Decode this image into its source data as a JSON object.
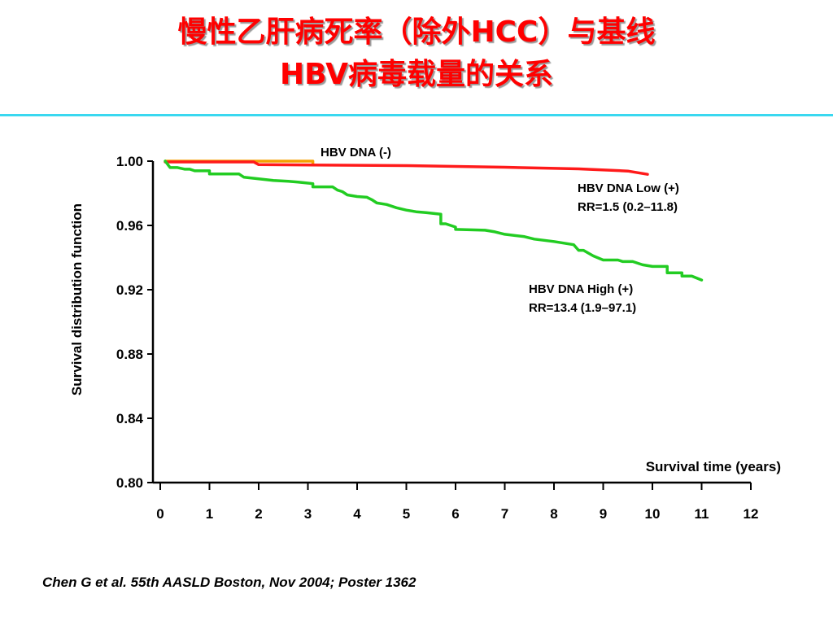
{
  "slide": {
    "title_line1": "慢性乙肝病死率（除外HCC）与基线",
    "title_line2": "HBV病毒载量的关系",
    "citation": "Chen G et al. 55th AASLD Boston, Nov 2004; Poster 1362",
    "accent_color": "#3ad8f0"
  },
  "chart_data": {
    "type": "line",
    "title": "",
    "xlabel": "Survival time (years)",
    "ylabel": "Survival distribution function",
    "xlim": [
      0,
      12
    ],
    "ylim": [
      0.8,
      1.0
    ],
    "x_ticks": [
      "0",
      "1",
      "2",
      "3",
      "4",
      "5",
      "6",
      "7",
      "8",
      "9",
      "10",
      "11",
      "12"
    ],
    "y_ticks": [
      "1.00",
      "0.96",
      "0.92",
      "0.88",
      "0.84",
      "0.80"
    ],
    "grid": false,
    "series": [
      {
        "name": "HBV DNA (-)",
        "color": "#f5a000",
        "points": [
          [
            0.1,
            1.0
          ],
          [
            3.1,
            1.0
          ],
          [
            3.1,
            0.9985
          ]
        ]
      },
      {
        "name": "HBV DNA Low (+)",
        "annotation": "RR=1.5 (0.2–11.8)",
        "color": "#ff1a1a",
        "points": [
          [
            0.1,
            0.9995
          ],
          [
            1.9,
            0.9995
          ],
          [
            2.0,
            0.9978
          ],
          [
            5.0,
            0.9972
          ],
          [
            7.0,
            0.9962
          ],
          [
            8.5,
            0.9952
          ],
          [
            9.5,
            0.9938
          ],
          [
            9.9,
            0.9918
          ]
        ]
      },
      {
        "name": "HBV DNA High (+)",
        "annotation": "RR=13.4 (1.9–97.1)",
        "color": "#22cc22",
        "points": [
          [
            0.1,
            1.0
          ],
          [
            0.2,
            0.996
          ],
          [
            0.35,
            0.996
          ],
          [
            0.5,
            0.995
          ],
          [
            0.6,
            0.995
          ],
          [
            0.7,
            0.994
          ],
          [
            1.0,
            0.994
          ],
          [
            1.0,
            0.992
          ],
          [
            1.6,
            0.992
          ],
          [
            1.7,
            0.99
          ],
          [
            2.0,
            0.989
          ],
          [
            2.3,
            0.988
          ],
          [
            2.6,
            0.9875
          ],
          [
            2.8,
            0.987
          ],
          [
            3.1,
            0.986
          ],
          [
            3.1,
            0.984
          ],
          [
            3.5,
            0.984
          ],
          [
            3.6,
            0.982
          ],
          [
            3.7,
            0.981
          ],
          [
            3.8,
            0.979
          ],
          [
            4.0,
            0.978
          ],
          [
            4.2,
            0.9775
          ],
          [
            4.3,
            0.976
          ],
          [
            4.4,
            0.974
          ],
          [
            4.6,
            0.973
          ],
          [
            4.8,
            0.971
          ],
          [
            5.0,
            0.9695
          ],
          [
            5.2,
            0.9685
          ],
          [
            5.4,
            0.968
          ],
          [
            5.7,
            0.967
          ],
          [
            5.7,
            0.961
          ],
          [
            5.8,
            0.961
          ],
          [
            6.0,
            0.959
          ],
          [
            6.0,
            0.9575
          ],
          [
            6.6,
            0.957
          ],
          [
            6.8,
            0.956
          ],
          [
            7.0,
            0.9545
          ],
          [
            7.4,
            0.953
          ],
          [
            7.6,
            0.9515
          ],
          [
            8.0,
            0.95
          ],
          [
            8.4,
            0.948
          ],
          [
            8.5,
            0.9445
          ],
          [
            8.6,
            0.9445
          ],
          [
            8.8,
            0.941
          ],
          [
            9.0,
            0.9385
          ],
          [
            9.3,
            0.9385
          ],
          [
            9.4,
            0.9375
          ],
          [
            9.6,
            0.9375
          ],
          [
            9.8,
            0.9355
          ],
          [
            10.0,
            0.9345
          ],
          [
            10.3,
            0.9345
          ],
          [
            10.3,
            0.9305
          ],
          [
            10.6,
            0.9305
          ],
          [
            10.6,
            0.9285
          ],
          [
            10.8,
            0.9285
          ],
          [
            11.0,
            0.926
          ]
        ]
      }
    ],
    "annotations": {
      "neg_label": "HBV DNA (-)",
      "low_label": "HBV DNA Low (+)",
      "low_rr": "RR=1.5 (0.2–11.8)",
      "high_label": "HBV DNA High (+)",
      "high_rr": "RR=13.4 (1.9–97.1)"
    },
    "axis_color": "#000000",
    "xlabel_color": "#ff0000"
  }
}
